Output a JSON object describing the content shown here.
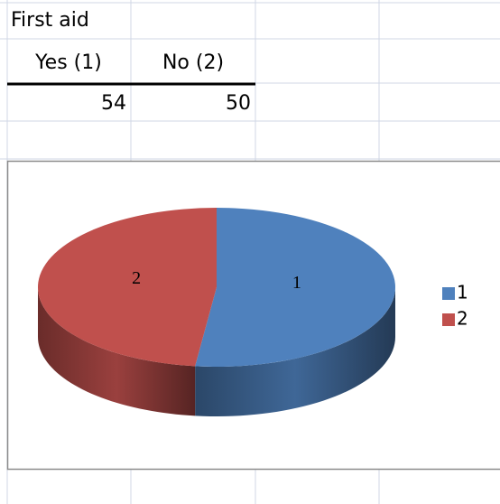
{
  "table": {
    "title": "First aid",
    "headers": [
      "Yes (1)",
      "No (2)"
    ],
    "rows": [
      [
        54,
        50
      ]
    ]
  },
  "chart_data": {
    "type": "pie",
    "categories": [
      "1",
      "2"
    ],
    "values": [
      54,
      50
    ],
    "colors": [
      "#4f81bd",
      "#c0504d"
    ],
    "legend": "right"
  }
}
